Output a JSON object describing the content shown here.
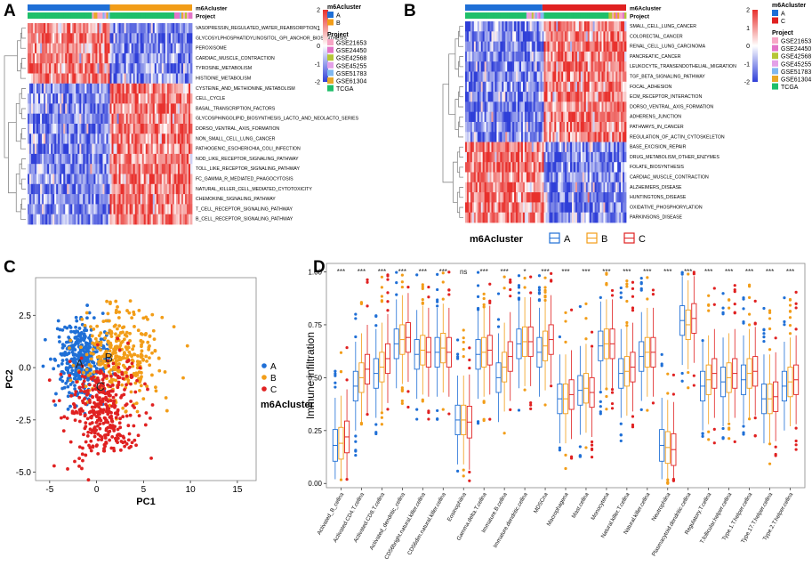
{
  "figure": {
    "panel_letters": [
      "A",
      "B",
      "C",
      "D"
    ]
  },
  "colors": {
    "clusterA": "#1f6fd6",
    "clusterB": "#f29d18",
    "clusterC": "#e02121",
    "heat_high": "#e8302c",
    "heat_low": "#2f3fd8",
    "heat_mid": "#ffffff",
    "tree": "#888888"
  },
  "chart_data": [
    {
      "panel": "A",
      "type": "heatmap",
      "annotation_tracks": [
        "m6Acluster",
        "Project"
      ],
      "column_groups": [
        "A",
        "B"
      ],
      "rows": [
        "VASOPRESSIN_REGULATED_WATER_REABSORPTION",
        "GLYCOSYLPHOSPHATIDYLINOSITOL_GPI_ANCHOR_BIOSYNTHESIS",
        "PEROXISOME",
        "CARDIAC_MUSCLE_CONTRACTION",
        "TYROSINE_METABOLISM",
        "HISTIDINE_METABOLISM",
        "CYSTEINE_AND_METHIONINE_METABOLISM",
        "CELL_CYCLE",
        "BASAL_TRANSCRIPTION_FACTORS",
        "GLYCOSPHINGOLIPID_BIOSYNTHESIS_LACTO_AND_NEOLACTO_SERIES",
        "DORSO_VENTRAL_AXIS_FORMATION",
        "NON_SMALL_CELL_LUNG_CANCER",
        "PATHOGENIC_ESCHERICHIA_COLI_INFECTION",
        "NOD_LIKE_RECEPTOR_SIGNALING_PATHWAY",
        "TOLL_LIKE_RECEPTOR_SIGNALING_PATHWAY",
        "FC_GAMMA_R_MEDIATED_PHAGOCYTOSIS",
        "NATURAL_KILLER_CELL_MEDIATED_CYTOTOXICITY",
        "CHEMOKINE_SIGNALING_PATHWAY",
        "T_CELL_RECEPTOR_SIGNALING_PATHWAY",
        "B_CELL_RECEPTOR_SIGNALING_PATHWAY"
      ],
      "row_pattern": [
        1,
        1,
        1,
        1,
        1,
        1,
        -1,
        -1,
        -1,
        -1,
        -1,
        -1,
        -1,
        -1,
        -1,
        -1,
        -1,
        -1,
        -1,
        -1
      ],
      "legend_title_cluster": "m6Acluster",
      "legend_clusters": [
        "A",
        "B"
      ],
      "legend_title_project": "Project",
      "projects": [
        "GSE21653",
        "GSE24450",
        "GSE42568",
        "GSE45255",
        "GSE51783",
        "GSE61304",
        "TCGA"
      ],
      "project_colors": [
        "#f7a6c5",
        "#e374c8",
        "#b5c636",
        "#e3a0e8",
        "#80b8f0",
        "#e8a828",
        "#1fbf6a"
      ],
      "colorbar_ticks": [
        "2",
        "1",
        "0",
        "-1",
        "-2"
      ]
    },
    {
      "panel": "B",
      "type": "heatmap",
      "annotation_tracks": [
        "m6Acluster",
        "Project"
      ],
      "column_groups": [
        "A",
        "C"
      ],
      "rows": [
        "SMALL_CELL_LUNG_CANCER",
        "COLORECTAL_CANCER",
        "RENAL_CELL_LUNG_CARCINOMA",
        "PANCREATIC_CANCER",
        "LEUKOCYTE_TRANSENDOTHELIAL_MIGRATION",
        "TGF_BETA_SIGNALING_PATHWAY",
        "FOCAL_ADHESION",
        "ECM_RECEPTOR_INTERACTION",
        "DORSO_VENTRAL_AXIS_FORMATION",
        "ADHERENS_JUNCTION",
        "PATHWAYS_IN_CANCER",
        "REGULATION_OF_ACTIN_CYTOSKELETON",
        "BASE_EXCISION_REPAIR",
        "DRUG_METABOLISM_OTHER_ENZYMES",
        "FOLATE_BIOSYNTHESIS",
        "CARDIAC_MUSCLE_CONTRACTION",
        "ALZHEIMERS_DISEASE",
        "HUNTINGTONS_DISEASE",
        "OXIDATIVE_PHOSPHORYLATION",
        "PARKINSONS_DISEASE"
      ],
      "row_pattern": [
        -1,
        -1,
        -1,
        -1,
        -1,
        -1,
        -1,
        -1,
        -1,
        -1,
        -1,
        -1,
        1,
        1,
        1,
        1,
        1,
        1,
        1,
        1
      ],
      "legend_title_cluster": "m6Acluster",
      "legend_clusters": [
        "A",
        "C"
      ],
      "legend_title_project": "Project",
      "projects": [
        "GSE21653",
        "GSE24450",
        "GSE42568",
        "GSE45255",
        "GSE51783",
        "GSE61304",
        "TCGA"
      ],
      "project_colors": [
        "#f7a6c5",
        "#e374c8",
        "#b5c636",
        "#e3a0e8",
        "#80b8f0",
        "#e8a828",
        "#1fbf6a"
      ],
      "colorbar_ticks": [
        "2",
        "1",
        "0",
        "-1",
        "-2"
      ]
    },
    {
      "panel": "C",
      "type": "scatter",
      "xlabel": "PC1",
      "ylabel": "PC2",
      "xlim": [
        -6.5,
        17
      ],
      "ylim": [
        -5.4,
        4.3
      ],
      "xticks": [
        -5,
        0,
        5,
        10,
        15
      ],
      "yticks": [
        2.5,
        0.0,
        -2.5,
        -5.0
      ],
      "ytick_labels": [
        "2.5",
        "0.0",
        "-2.5",
        "-5.0"
      ],
      "legend_title": "m6Acluster",
      "legend": [
        "A",
        "B",
        "C"
      ],
      "centroid_labels": [
        {
          "name": "A",
          "x": -1.8,
          "y": 0.2
        },
        {
          "name": "B",
          "x": 1.3,
          "y": 0.5
        },
        {
          "name": "C",
          "x": 0.4,
          "y": -0.9
        }
      ],
      "series": [
        {
          "name": "A",
          "center": [
            -1.6,
            0.4
          ],
          "spread": [
            1.4,
            0.9
          ],
          "n": 380
        },
        {
          "name": "B",
          "center": [
            2.6,
            0.6
          ],
          "spread": [
            2.2,
            1.1
          ],
          "n": 320
        },
        {
          "name": "C",
          "center": [
            0.8,
            -2.0
          ],
          "spread": [
            1.9,
            1.2
          ],
          "n": 360
        }
      ]
    },
    {
      "panel": "D",
      "type": "box",
      "ylabel": "Immune infiltration",
      "ylim": [
        -0.02,
        1.04
      ],
      "yticks": [
        0.0,
        0.25,
        0.5,
        0.75,
        1.0
      ],
      "ytick_labels": [
        "0.00",
        "0.25",
        "0.50",
        "0.75",
        "1.00"
      ],
      "legend_title": "m6Acluster",
      "legend": [
        "A",
        "B",
        "C"
      ],
      "categories": [
        "Activated_B_cellna",
        "Activated.CD4.T.cellna",
        "Activated.CD8.T.cellna",
        "Activated_dendritic_cellna",
        "CD56bright.natural.killer.cellna",
        "CD56dim.natural.killer.cellna",
        "Eosinophilna",
        "Gamma.delta.T.cellna",
        "Immature.B.cellna",
        "Immature.dendritic.cellna",
        "MDSCna",
        "Macrophagena",
        "Mast.cellna",
        "Monocytena",
        "Natural.killer.T.cellna",
        "Natural.killer.cellna",
        "Neutrophilna",
        "Plasmacytoid.dendritic.cellna",
        "Regulatory.T.cellna",
        "T.follicular.helper.cellna",
        "Type.1.T.helper.cellna",
        "Type.17.T.helper.cellna",
        "Type.2.T.helper.cellna"
      ],
      "significance": [
        "***",
        "***",
        "***",
        "***",
        "***",
        "***",
        "ns",
        "***",
        "***",
        "*",
        "***",
        "***",
        "***",
        "***",
        "***",
        "***",
        "***",
        "***",
        "***",
        "***",
        "***",
        "***",
        "***"
      ],
      "medians": [
        [
          0.18,
          0.19,
          0.22
        ],
        [
          0.46,
          0.5,
          0.54
        ],
        [
          0.52,
          0.55,
          0.59
        ],
        [
          0.66,
          0.68,
          0.69
        ],
        [
          0.61,
          0.63,
          0.62
        ],
        [
          0.62,
          0.64,
          0.62
        ],
        [
          0.3,
          0.3,
          0.29
        ],
        [
          0.61,
          0.62,
          0.63
        ],
        [
          0.5,
          0.55,
          0.6
        ],
        [
          0.66,
          0.67,
          0.67
        ],
        [
          0.62,
          0.65,
          0.68
        ],
        [
          0.4,
          0.4,
          0.42
        ],
        [
          0.44,
          0.45,
          0.43
        ],
        [
          0.65,
          0.66,
          0.66
        ],
        [
          0.52,
          0.53,
          0.55
        ],
        [
          0.6,
          0.62,
          0.62
        ],
        [
          0.18,
          0.17,
          0.16
        ],
        [
          0.77,
          0.75,
          0.78
        ],
        [
          0.46,
          0.49,
          0.52
        ],
        [
          0.48,
          0.5,
          0.52
        ],
        [
          0.49,
          0.52,
          0.53
        ],
        [
          0.4,
          0.4,
          0.41
        ],
        [
          0.46,
          0.48,
          0.49
        ]
      ]
    }
  ]
}
